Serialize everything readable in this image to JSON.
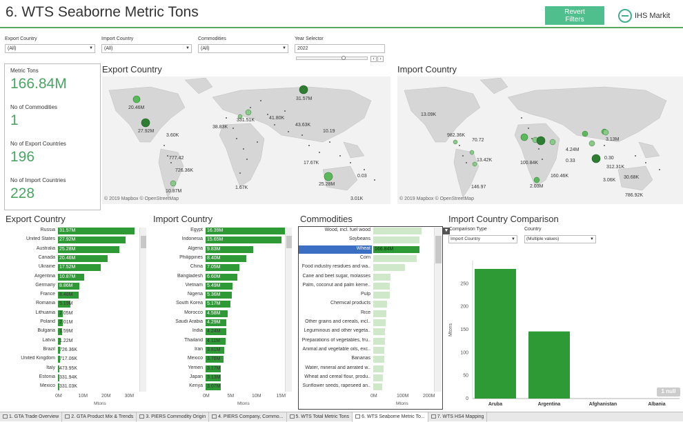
{
  "header": {
    "title": "6. WTS Seaborne Metric Tons",
    "revert_label": "Revert\nFilters",
    "logo_text": "IHS Markit"
  },
  "filters": {
    "export_country": {
      "label": "Export Country",
      "value": "(All)"
    },
    "import_country": {
      "label": "Import Country",
      "value": "(All)"
    },
    "commodities": {
      "label": "Commodities",
      "value": "(All)"
    },
    "year": {
      "label": "Year Selector",
      "value": "2022"
    }
  },
  "kpis": {
    "metric_tons_label": "Metric Tons",
    "metric_tons_value": "166.84M",
    "commodities_label": "No of Commodities",
    "commodities_value": "1",
    "export_countries_label": "No of Export Countries",
    "export_countries_value": "196",
    "import_countries_label": "No of Import Countries",
    "import_countries_value": "228"
  },
  "maps": {
    "export_title": "Export Country",
    "import_title": "Import Country",
    "attribution": "© 2019 Mapbox © OpenStreetMap",
    "export_labels": [
      "20.46M",
      "27.92M",
      "3.60K",
      "777.42",
      "726.36K",
      "10.87M",
      "38.83K",
      "331.51K",
      "41.80K",
      "31.57M",
      "10.19",
      "43.63K",
      "17.67K",
      "25.28M",
      "0.03",
      "3.01K",
      "1.67K"
    ],
    "import_labels": [
      "13.09K",
      "982.36K",
      "70.72",
      "13.42K",
      "146.97",
      "2.03M",
      "100.84K",
      "160.46K",
      "0.33",
      "4.24M",
      "3.13M",
      "0.30",
      "312.31K",
      "3.06K",
      "30.68K",
      "786.92K"
    ]
  },
  "export_chart": {
    "title": "Export Country",
    "axis_title": "Mtons",
    "ticks": [
      "0M",
      "10M",
      "20M",
      "30M"
    ],
    "rows": [
      {
        "name": "Russia",
        "value": 31.57,
        "label": "31.57M"
      },
      {
        "name": "United States",
        "value": 27.92,
        "label": "27.92M"
      },
      {
        "name": "Australia",
        "value": 25.28,
        "label": "25.28M"
      },
      {
        "name": "Canada",
        "value": 20.46,
        "label": "20.46M"
      },
      {
        "name": "Ukraine",
        "value": 17.52,
        "label": "17.52M"
      },
      {
        "name": "Argentina",
        "value": 10.87,
        "label": "10.87M"
      },
      {
        "name": "Germany",
        "value": 8.86,
        "label": "8.86M"
      },
      {
        "name": "France",
        "value": 8.48,
        "label": "8.48M"
      },
      {
        "name": "Romania",
        "value": 5.19,
        "label": "5.19M"
      },
      {
        "name": "Lithuania",
        "value": 2.05,
        "label": "2.05M"
      },
      {
        "name": "Poland",
        "value": 2.01,
        "label": "2.01M"
      },
      {
        "name": "Bulgaria",
        "value": 1.59,
        "label": "1.59M"
      },
      {
        "name": "Latvia",
        "value": 1.22,
        "label": "1.22M"
      },
      {
        "name": "Brazil",
        "value": 0.726,
        "label": "726.36K"
      },
      {
        "name": "United Kingdom",
        "value": 0.717,
        "label": "717.06K"
      },
      {
        "name": "Italy",
        "value": 0.474,
        "label": "473.95K"
      },
      {
        "name": "Estonia",
        "value": 0.332,
        "label": "331.94K"
      },
      {
        "name": "Mexico",
        "value": 0.331,
        "label": "331.03K"
      }
    ]
  },
  "import_chart": {
    "title": "Import Country",
    "axis_title": "Mtons",
    "ticks": [
      "0M",
      "5M",
      "10M",
      "15M"
    ],
    "rows": [
      {
        "name": "Egypt",
        "value": 16.39,
        "label": "16.39M"
      },
      {
        "name": "Indonesia",
        "value": 15.65,
        "label": "15.65M"
      },
      {
        "name": "Algeria",
        "value": 9.83,
        "label": "9.83M"
      },
      {
        "name": "Philippines",
        "value": 8.4,
        "label": "8.40M"
      },
      {
        "name": "China",
        "value": 7.05,
        "label": "7.05M"
      },
      {
        "name": "Bangladesh",
        "value": 6.6,
        "label": "6.60M"
      },
      {
        "name": "Vietnam",
        "value": 5.49,
        "label": "5.49M"
      },
      {
        "name": "Nigeria",
        "value": 5.36,
        "label": "5.36M"
      },
      {
        "name": "South Korea",
        "value": 5.17,
        "label": "5.17M"
      },
      {
        "name": "Morocco",
        "value": 4.58,
        "label": "4.58M"
      },
      {
        "name": "Saudi Arabia",
        "value": 4.29,
        "label": "4.29M"
      },
      {
        "name": "India",
        "value": 4.24,
        "label": "4.24M"
      },
      {
        "name": "Thailand",
        "value": 4.11,
        "label": "4.11M"
      },
      {
        "name": "Iran",
        "value": 3.81,
        "label": "3.81M"
      },
      {
        "name": "Mexico",
        "value": 3.76,
        "label": "3.76M"
      },
      {
        "name": "Yemen",
        "value": 3.17,
        "label": "3.17M"
      },
      {
        "name": "Japan",
        "value": 3.13,
        "label": "3.13M"
      },
      {
        "name": "Kenya",
        "value": 3.07,
        "label": "3.07M"
      }
    ]
  },
  "commodities_chart": {
    "title": "Commodities",
    "axis_title": "Mtons",
    "ticks": [
      "0M",
      "100M",
      "200M"
    ],
    "rows": [
      {
        "name": "Wood, incl. fuel wood",
        "value": 175,
        "selected": false
      },
      {
        "name": "Soybeans",
        "value": 168,
        "selected": false
      },
      {
        "name": "Wheat",
        "value": 166.84,
        "label": "166.84M",
        "selected": true
      },
      {
        "name": "Corn",
        "value": 158,
        "selected": false
      },
      {
        "name": "Food industry residues and wa..",
        "value": 115,
        "selected": false
      },
      {
        "name": "Cane and beet sugar, molasses",
        "value": 62,
        "selected": false
      },
      {
        "name": "Palm, coconut and palm kerne..",
        "value": 60,
        "selected": false
      },
      {
        "name": "Pulp",
        "value": 60,
        "selected": false
      },
      {
        "name": "Chemical products",
        "value": 50,
        "selected": false
      },
      {
        "name": "Rice",
        "value": 48,
        "selected": false
      },
      {
        "name": "Other grains and cereals, incl..",
        "value": 45,
        "selected": false
      },
      {
        "name": "Leguminous and other vegeta..",
        "value": 42,
        "selected": false
      },
      {
        "name": "Preparations of vegetables, fru..",
        "value": 42,
        "selected": false
      },
      {
        "name": "Animal and vegetable oils, exc..",
        "value": 40,
        "selected": false
      },
      {
        "name": "Bananas",
        "value": 40,
        "selected": false
      },
      {
        "name": "Water, mineral and aerated w..",
        "value": 38,
        "selected": false
      },
      {
        "name": "Wheat and cereal flour, produ..",
        "value": 36,
        "selected": false
      },
      {
        "name": "Sunflower seeds, rapeseed an..",
        "value": 33,
        "selected": false
      }
    ]
  },
  "comparison": {
    "title": "Import Country Comparison",
    "type_label": "Comparison Type",
    "type_value": "Import Country",
    "country_label": "Country",
    "country_value": "(Multiple values)",
    "axis_title": "Mtons",
    "null_badge": "1 null"
  },
  "chart_data": {
    "type": "bar",
    "categories": [
      "Aruba",
      "Argentina",
      "Afghanistan",
      "Albania"
    ],
    "values": [
      282,
      146,
      0,
      0
    ],
    "xlabel": "",
    "ylabel": "Mtons",
    "ylim": [
      0,
      300
    ],
    "yticks": [
      "0",
      "50",
      "100",
      "150",
      "200",
      "250"
    ]
  },
  "tabs": [
    {
      "label": "1. GTA Trade Overview",
      "active": false
    },
    {
      "label": "2. GTA Product Mix & Trends",
      "active": false
    },
    {
      "label": "3. PIERS Commodity Origin",
      "active": false
    },
    {
      "label": "4. PIERS Company, Commo...",
      "active": false
    },
    {
      "label": "5. WTS Total Metric Tons",
      "active": false
    },
    {
      "label": "6. WTS Seaborne Metric To...",
      "active": true
    },
    {
      "label": "7. WTS HS4 Mapping",
      "active": false
    }
  ],
  "colors": {
    "bar_green": "#2e9a35",
    "light_green": "#cfe8c9",
    "selected_blue": "#3a6fc4",
    "accent": "#4fc08d"
  }
}
